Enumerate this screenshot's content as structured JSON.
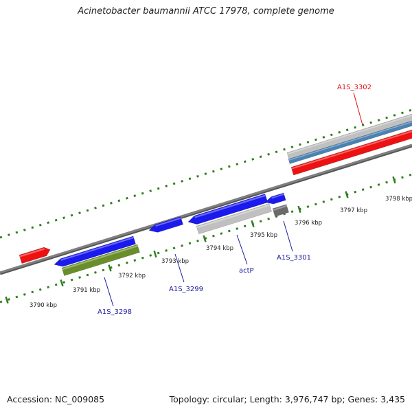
{
  "title": "Acinetobacter baumannii ATCC 17978, complete genome",
  "footer": {
    "accession": "Accession: NC_009085",
    "topology": "Topology: circular; Length: 3,976,747 bp; Genes: 3,435"
  },
  "colors": {
    "backbone": "#808080",
    "tick": "#2f7f1f",
    "gene_forward": "#1a1aee",
    "gene_reverse": "#ee1111",
    "cds_grey": "#c0c0c0",
    "cds_dark": "#6a6a6a",
    "cds_green": "#6a8f2a",
    "rna_steel": "#4a82b4",
    "gene_label": "#1a1aa0",
    "gene_label_red": "#dd1111",
    "scale_label": "#222222"
  },
  "scale_labels": [
    "3790 kbp",
    "3791 kbp",
    "3792 kbp",
    "3793 kbp",
    "3794 kbp",
    "3795 kbp",
    "3796 kbp",
    "3797 kbp",
    "3798 kbp"
  ],
  "gene_labels": [
    "A1S_3298",
    "A1S_3299",
    "actP",
    "A1S_3301",
    "A1S_3302"
  ],
  "features": [
    {
      "name": "A1S_3298",
      "strand": "forward",
      "color": "gene_forward"
    },
    {
      "name": "A1S_3298",
      "strand": "forward",
      "color": "cds_green"
    },
    {
      "name": "A1S_3299",
      "strand": "forward",
      "color": "gene_forward"
    },
    {
      "name": "actP",
      "strand": "forward",
      "color": "gene_forward"
    },
    {
      "name": "actP",
      "strand": "forward",
      "color": "cds_grey"
    },
    {
      "name": "A1S_3301",
      "strand": "forward",
      "color": "gene_forward"
    },
    {
      "name": "A1S_3301",
      "strand": "forward",
      "color": "cds_dark"
    },
    {
      "name": "A1S_3302",
      "strand": "reverse",
      "color": "cds_grey"
    },
    {
      "name": "A1S_3302",
      "strand": "reverse",
      "color": "rna_steel"
    },
    {
      "name": "A1S_3302",
      "strand": "reverse",
      "color": "gene_reverse"
    },
    {
      "name": "",
      "strand": "reverse",
      "color": "gene_reverse"
    }
  ]
}
